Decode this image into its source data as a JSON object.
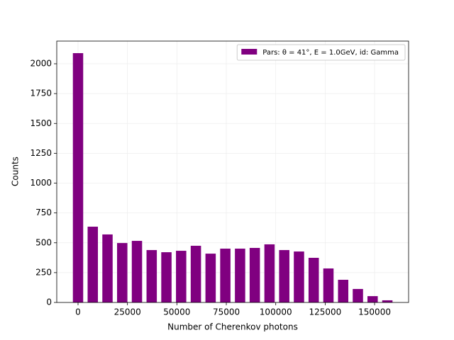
{
  "chart_data": {
    "type": "histogram",
    "xlabel": "Number of Cherenkov photons",
    "ylabel": "Counts",
    "bins": [
      -3725,
      3725,
      11175,
      18625,
      26075,
      33525,
      40975,
      48425,
      55875,
      63325,
      70775,
      78225,
      85675,
      93125,
      100575,
      108025,
      115475,
      122925,
      130375,
      137825,
      145275,
      152725,
      160175
    ],
    "values": [
      2089,
      635,
      570,
      498,
      516,
      439,
      421,
      433,
      475,
      409,
      451,
      451,
      457,
      487,
      439,
      427,
      374,
      285,
      190,
      113,
      53,
      18
    ],
    "series_name": "Pars: θ = 41°, E = 1.0GeV, id: Gamma",
    "color": "#800080",
    "xlim": [
      -10765,
      167200
    ],
    "ylim": [
      0,
      2190
    ],
    "xticks": [
      0,
      25000,
      50000,
      75000,
      100000,
      125000,
      150000
    ],
    "yticks": [
      0,
      250,
      500,
      750,
      1000,
      1250,
      1500,
      1750,
      2000
    ],
    "grid": true,
    "legend": "upper right"
  }
}
